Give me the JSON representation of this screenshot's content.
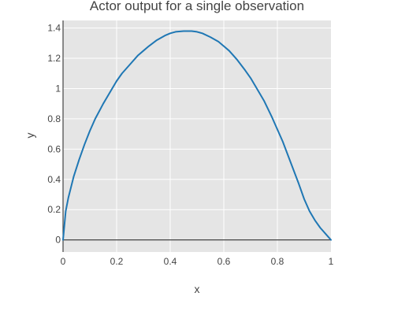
{
  "chart_data": {
    "type": "line",
    "title": "Actor output for a single observation",
    "xlabel": "x",
    "ylabel": "y",
    "xlim": [
      0,
      1
    ],
    "ylim": [
      -0.08,
      1.45
    ],
    "xticks": [
      0,
      0.2,
      0.4,
      0.6,
      0.8,
      1
    ],
    "xtick_labels": [
      "0",
      "0.2",
      "0.4",
      "0.6",
      "0.8",
      "1"
    ],
    "yticks": [
      0,
      0.2,
      0.4,
      0.6,
      0.8,
      1,
      1.2,
      1.4
    ],
    "ytick_labels": [
      "0",
      "0.2",
      "0.4",
      "0.6",
      "0.8",
      "1",
      "1.2",
      "1.4"
    ],
    "grid": true,
    "legend": "none",
    "colors": {
      "plot_background": "#e5e5e5",
      "grid": "#ffffff",
      "zero_line": "#444444",
      "line": "#1f77b4"
    },
    "series": [
      {
        "x": [
          0,
          0.01,
          0.02,
          0.04,
          0.06,
          0.08,
          0.1,
          0.12,
          0.15,
          0.18,
          0.2,
          0.22,
          0.25,
          0.28,
          0.3,
          0.32,
          0.35,
          0.38,
          0.4,
          0.42,
          0.45,
          0.48,
          0.5,
          0.52,
          0.55,
          0.58,
          0.6,
          0.62,
          0.65,
          0.68,
          0.7,
          0.72,
          0.75,
          0.78,
          0.8,
          0.82,
          0.85,
          0.88,
          0.9,
          0.92,
          0.94,
          0.96,
          0.98,
          0.99,
          1.0
        ],
        "values": [
          0,
          0.19,
          0.28,
          0.42,
          0.53,
          0.63,
          0.72,
          0.8,
          0.9,
          0.99,
          1.05,
          1.1,
          1.16,
          1.22,
          1.25,
          1.28,
          1.32,
          1.35,
          1.365,
          1.375,
          1.38,
          1.38,
          1.375,
          1.365,
          1.34,
          1.31,
          1.28,
          1.25,
          1.19,
          1.12,
          1.07,
          1.01,
          0.92,
          0.81,
          0.73,
          0.65,
          0.51,
          0.37,
          0.27,
          0.19,
          0.13,
          0.08,
          0.04,
          0.02,
          0
        ]
      }
    ]
  }
}
